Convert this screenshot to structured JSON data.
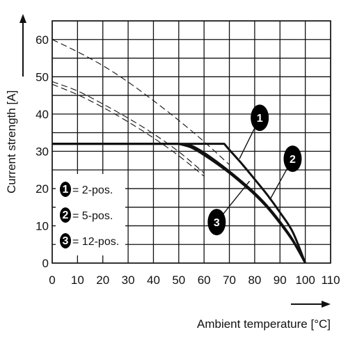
{
  "chart_data": {
    "type": "line",
    "xlabel": "Ambient temperature [°C]",
    "ylabel": "Current strength [A]",
    "xlim": [
      0,
      110
    ],
    "ylim": [
      0,
      65
    ],
    "x_ticks": [
      "0",
      "10",
      "20",
      "30",
      "40",
      "50",
      "60",
      "70",
      "80",
      "90",
      "100",
      "110"
    ],
    "y_ticks": [
      "0",
      "10",
      "20",
      "30",
      "40",
      "50",
      "60"
    ],
    "grid": true,
    "legend_position": "bottom-left",
    "series": [
      {
        "name": "2-pos.",
        "marker": "1",
        "x": [
          0,
          10,
          20,
          30,
          40,
          50,
          60,
          68,
          70,
          75,
          80,
          85,
          90,
          95,
          100
        ],
        "y": [
          32,
          32,
          32,
          32,
          32,
          32,
          32,
          32,
          30.4,
          26.6,
          22.5,
          18.3,
          13.6,
          8.4,
          0
        ]
      },
      {
        "name": "5-pos.",
        "marker": "2",
        "x": [
          0,
          10,
          20,
          30,
          40,
          50,
          55,
          60,
          65,
          70,
          75,
          80,
          85,
          90,
          95,
          100
        ],
        "y": [
          32,
          32,
          32,
          32,
          32,
          32,
          31.5,
          29.6,
          27.2,
          24.6,
          21.8,
          18.8,
          15.3,
          11.1,
          6.3,
          0
        ]
      },
      {
        "name": "12-pos.",
        "marker": "3",
        "x": [
          0,
          10,
          20,
          30,
          40,
          50,
          55,
          60,
          65,
          70,
          75,
          80,
          85,
          90,
          95,
          100
        ],
        "y": [
          32,
          32,
          32,
          32,
          32,
          32,
          31,
          29,
          26.7,
          24.2,
          21.4,
          18.4,
          14.9,
          10.7,
          6,
          0
        ]
      }
    ],
    "derating_curves": [
      {
        "marker": "1",
        "style": "dashed",
        "x": [
          0,
          10,
          20,
          30,
          40,
          50,
          60,
          70
        ],
        "y": [
          60,
          56.7,
          53,
          48.6,
          43.6,
          38.3,
          32.6,
          26.4
        ]
      },
      {
        "marker": "2",
        "style": "dashed",
        "x": [
          0,
          10,
          20,
          30,
          40,
          50,
          60
        ],
        "y": [
          48.7,
          46.2,
          42.7,
          38.9,
          34.7,
          29.9,
          24.2
        ]
      },
      {
        "marker": "3",
        "style": "dashed",
        "x": [
          0,
          10,
          20,
          30,
          40,
          50,
          60
        ],
        "y": [
          48,
          45.2,
          41.8,
          37.9,
          33.6,
          28.8,
          23.3
        ]
      }
    ],
    "legend": [
      {
        "marker": "1",
        "sep": "=",
        "label": "2-pos."
      },
      {
        "marker": "2",
        "sep": "=",
        "label": "5-pos."
      },
      {
        "marker": "3",
        "sep": "=",
        "label": "12-pos."
      }
    ],
    "callouts": [
      {
        "marker": "1",
        "x": 82,
        "y": 39,
        "target_x": 74,
        "target_y": 28
      },
      {
        "marker": "2",
        "x": 95,
        "y": 28,
        "target_x": 86,
        "target_y": 17
      },
      {
        "marker": "3",
        "x": 65,
        "y": 11,
        "target_x": 78,
        "target_y": 22
      }
    ],
    "colors": {
      "line": "#111111",
      "grid": "#111111",
      "marker_fill": "#000000",
      "marker_text": "#ffffff"
    }
  }
}
